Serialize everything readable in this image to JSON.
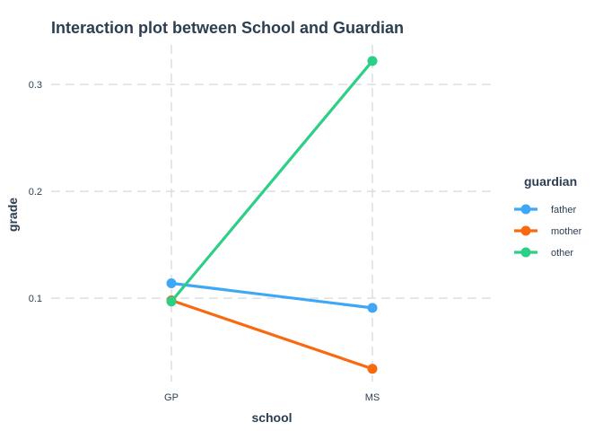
{
  "chart_data": {
    "type": "line",
    "title": "Interaction plot between School and Guardian",
    "xlabel": "school",
    "ylabel": "grade",
    "categories": [
      "GP",
      "MS"
    ],
    "ylim": [
      0.022,
      0.337
    ],
    "yticks": [
      0.1,
      0.2,
      0.3
    ],
    "ytick_labels": [
      "0.1",
      "0.2",
      "0.3"
    ],
    "grid": true,
    "legend": {
      "title": "guardian",
      "position": "right"
    },
    "series": [
      {
        "name": "father",
        "color": "#3fa7f5",
        "values": [
          0.114,
          0.091
        ]
      },
      {
        "name": "mother",
        "color": "#f76a0f",
        "values": [
          0.098,
          0.034
        ]
      },
      {
        "name": "other",
        "color": "#2bcf86",
        "values": [
          0.097,
          0.322
        ]
      }
    ]
  }
}
